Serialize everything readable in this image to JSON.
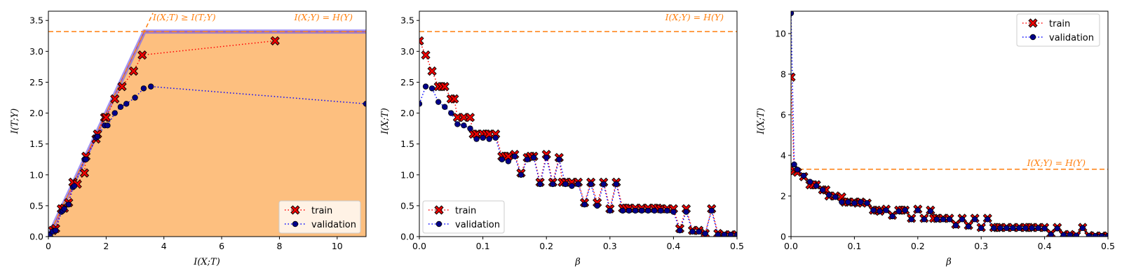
{
  "colors": {
    "orange": "#ff7f0e",
    "fill": "#fdbf7f",
    "band": "#7b68ee",
    "train_line": "#ff0000",
    "train_marker": "#ee0000",
    "val_line": "#0000ff",
    "val_marker": "#00008b"
  },
  "chart_data": [
    {
      "id": "p1",
      "type": "scatter",
      "xlabel": "I(X;T)",
      "ylabel": "I(T;Y)",
      "xlim": [
        0,
        11
      ],
      "ylim": [
        0,
        3.65
      ],
      "xticks": [
        0,
        2,
        4,
        6,
        8,
        10
      ],
      "yticks": [
        0.0,
        0.5,
        1.0,
        1.5,
        2.0,
        2.5,
        3.0,
        3.5
      ],
      "ytick_decimals": 1,
      "hline": 3.32,
      "hline_label": "I(X;Y) = H(Y)",
      "bound": {
        "points": [
          [
            0,
            0
          ],
          [
            3.32,
            3.32
          ],
          [
            11,
            3.32
          ]
        ],
        "label": "I(X;T) ≥ I(T;Y)",
        "diag_end": [
          3.62,
          3.62
        ]
      },
      "legend": "lower right",
      "grid": false,
      "series": [
        {
          "name": "train",
          "x": [
            0.05,
            0.15,
            0.25,
            0.45,
            0.55,
            0.7,
            0.85,
            1.0,
            1.25,
            1.3,
            1.65,
            1.7,
            1.95,
            2.0,
            2.3,
            2.55,
            2.95,
            3.25,
            7.85
          ],
          "y": [
            0.03,
            0.1,
            0.13,
            0.45,
            0.46,
            0.55,
            0.88,
            0.85,
            1.03,
            1.3,
            1.58,
            1.66,
            1.93,
            1.93,
            2.23,
            2.43,
            2.68,
            2.94,
            3.17
          ]
        },
        {
          "name": "validation",
          "x": [
            0.05,
            0.15,
            0.25,
            0.45,
            0.5,
            0.55,
            0.7,
            0.85,
            0.9,
            1.25,
            1.3,
            1.65,
            1.7,
            1.95,
            2.05,
            2.3,
            2.5,
            2.7,
            3.0,
            3.3,
            3.55,
            11.0
          ],
          "y": [
            0.03,
            0.08,
            0.1,
            0.4,
            0.42,
            0.45,
            0.52,
            0.8,
            0.82,
            1.25,
            1.25,
            1.6,
            1.62,
            1.8,
            1.8,
            2.0,
            2.1,
            2.15,
            2.25,
            2.4,
            2.43,
            2.15
          ]
        }
      ]
    },
    {
      "id": "p2",
      "type": "line",
      "xlabel": "β",
      "ylabel": "I(X;T)",
      "xlim": [
        0,
        0.5
      ],
      "ylim": [
        0,
        3.65
      ],
      "xticks": [
        0.0,
        0.1,
        0.2,
        0.3,
        0.4,
        0.5
      ],
      "xtick_decimals": 1,
      "yticks": [
        0.0,
        0.5,
        1.0,
        1.5,
        2.0,
        2.5,
        3.0,
        3.5
      ],
      "ytick_decimals": 1,
      "hline": 3.32,
      "hline_label": "I(X;Y) = H(Y)",
      "legend": "lower left",
      "grid": false,
      "series": [
        {
          "name": "train",
          "x": [
            0.0,
            0.01,
            0.02,
            0.03,
            0.035,
            0.04,
            0.05,
            0.055,
            0.06,
            0.07,
            0.08,
            0.085,
            0.09,
            0.1,
            0.105,
            0.11,
            0.12,
            0.13,
            0.135,
            0.14,
            0.15,
            0.16,
            0.17,
            0.175,
            0.18,
            0.19,
            0.2,
            0.21,
            0.22,
            0.225,
            0.23,
            0.24,
            0.25,
            0.26,
            0.27,
            0.28,
            0.29,
            0.3,
            0.31,
            0.32,
            0.325,
            0.33,
            0.34,
            0.35,
            0.36,
            0.37,
            0.375,
            0.38,
            0.39,
            0.4,
            0.41,
            0.42,
            0.43,
            0.44,
            0.45,
            0.46,
            0.47,
            0.48,
            0.49,
            0.5
          ],
          "y": [
            3.17,
            2.94,
            2.68,
            2.43,
            2.43,
            2.43,
            2.23,
            2.23,
            1.93,
            1.93,
            1.93,
            1.66,
            1.66,
            1.66,
            1.66,
            1.66,
            1.66,
            1.3,
            1.3,
            1.3,
            1.33,
            1.03,
            1.28,
            1.3,
            1.3,
            0.88,
            1.33,
            0.88,
            1.28,
            0.88,
            0.88,
            0.88,
            0.88,
            0.55,
            0.88,
            0.55,
            0.88,
            0.45,
            0.88,
            0.46,
            0.46,
            0.46,
            0.46,
            0.46,
            0.46,
            0.46,
            0.46,
            0.45,
            0.45,
            0.45,
            0.13,
            0.45,
            0.1,
            0.1,
            0.05,
            0.45,
            0.05,
            0.03,
            0.03,
            0.03
          ]
        },
        {
          "name": "validation",
          "x": [
            0.0,
            0.01,
            0.02,
            0.03,
            0.04,
            0.05,
            0.06,
            0.07,
            0.08,
            0.09,
            0.1,
            0.11,
            0.12,
            0.13,
            0.14,
            0.15,
            0.16,
            0.17,
            0.18,
            0.19,
            0.2,
            0.21,
            0.22,
            0.23,
            0.24,
            0.25,
            0.26,
            0.27,
            0.28,
            0.29,
            0.3,
            0.31,
            0.32,
            0.33,
            0.34,
            0.35,
            0.36,
            0.37,
            0.38,
            0.39,
            0.4,
            0.41,
            0.42,
            0.43,
            0.44,
            0.45,
            0.46,
            0.47,
            0.48,
            0.49,
            0.5
          ],
          "y": [
            2.15,
            2.43,
            2.4,
            2.18,
            2.1,
            2.0,
            1.82,
            1.8,
            1.75,
            1.58,
            1.6,
            1.58,
            1.6,
            1.25,
            1.22,
            1.3,
            1.0,
            1.25,
            1.28,
            0.85,
            1.28,
            0.85,
            1.25,
            0.85,
            0.82,
            0.85,
            0.52,
            0.85,
            0.5,
            0.85,
            0.42,
            0.85,
            0.42,
            0.42,
            0.42,
            0.42,
            0.42,
            0.42,
            0.42,
            0.42,
            0.4,
            0.1,
            0.4,
            0.08,
            0.08,
            0.05,
            0.42,
            0.03,
            0.03,
            0.03,
            0.03
          ]
        }
      ]
    },
    {
      "id": "p3",
      "type": "line",
      "xlabel": "β",
      "ylabel": "I(X;T)",
      "xlim": [
        0,
        0.5
      ],
      "ylim": [
        0,
        11.1
      ],
      "xticks": [
        0.0,
        0.1,
        0.2,
        0.3,
        0.4,
        0.5
      ],
      "xtick_decimals": 1,
      "yticks": [
        0,
        2,
        4,
        6,
        8,
        10
      ],
      "ytick_decimals": 0,
      "hline": 3.32,
      "hline_label": "I(X;Y) = H(Y)",
      "legend": "upper right",
      "grid": false,
      "series": [
        {
          "name": "train",
          "x": [
            0.0,
            0.005,
            0.01,
            0.02,
            0.03,
            0.035,
            0.04,
            0.05,
            0.055,
            0.06,
            0.07,
            0.08,
            0.085,
            0.09,
            0.1,
            0.105,
            0.11,
            0.12,
            0.13,
            0.135,
            0.14,
            0.15,
            0.16,
            0.17,
            0.175,
            0.18,
            0.19,
            0.2,
            0.21,
            0.22,
            0.225,
            0.23,
            0.24,
            0.25,
            0.26,
            0.27,
            0.28,
            0.29,
            0.3,
            0.31,
            0.32,
            0.325,
            0.33,
            0.34,
            0.35,
            0.36,
            0.37,
            0.375,
            0.38,
            0.39,
            0.4,
            0.41,
            0.42,
            0.43,
            0.44,
            0.45,
            0.46,
            0.47,
            0.48,
            0.49,
            0.5
          ],
          "y": [
            7.85,
            3.25,
            3.17,
            2.95,
            2.55,
            2.55,
            2.55,
            2.3,
            2.3,
            2.0,
            2.0,
            1.95,
            1.7,
            1.7,
            1.7,
            1.65,
            1.7,
            1.65,
            1.3,
            1.3,
            1.25,
            1.35,
            1.05,
            1.3,
            1.3,
            1.3,
            0.9,
            1.35,
            0.9,
            1.3,
            0.9,
            0.9,
            0.9,
            0.9,
            0.6,
            0.9,
            0.55,
            0.9,
            0.45,
            0.9,
            0.45,
            0.45,
            0.45,
            0.45,
            0.45,
            0.45,
            0.45,
            0.45,
            0.45,
            0.45,
            0.45,
            0.15,
            0.45,
            0.1,
            0.1,
            0.05,
            0.45,
            0.05,
            0.03,
            0.03,
            0.03
          ]
        },
        {
          "name": "validation",
          "x": [
            0.0,
            0.005,
            0.01,
            0.02,
            0.03,
            0.04,
            0.05,
            0.06,
            0.07,
            0.08,
            0.09,
            0.1,
            0.11,
            0.12,
            0.13,
            0.14,
            0.15,
            0.16,
            0.17,
            0.18,
            0.19,
            0.2,
            0.21,
            0.22,
            0.23,
            0.24,
            0.25,
            0.26,
            0.27,
            0.28,
            0.29,
            0.3,
            0.31,
            0.32,
            0.33,
            0.34,
            0.35,
            0.36,
            0.37,
            0.38,
            0.39,
            0.4,
            0.41,
            0.42,
            0.43,
            0.44,
            0.45,
            0.46,
            0.47,
            0.48,
            0.49,
            0.5
          ],
          "y": [
            11.0,
            3.55,
            3.3,
            3.0,
            2.7,
            2.5,
            2.3,
            2.05,
            1.95,
            1.7,
            1.7,
            1.65,
            1.7,
            1.65,
            1.3,
            1.25,
            1.3,
            1.0,
            1.25,
            1.3,
            0.85,
            1.3,
            0.85,
            1.25,
            0.85,
            0.85,
            0.85,
            0.55,
            0.85,
            0.5,
            0.85,
            0.42,
            0.85,
            0.42,
            0.42,
            0.42,
            0.42,
            0.42,
            0.42,
            0.42,
            0.42,
            0.4,
            0.1,
            0.4,
            0.08,
            0.08,
            0.05,
            0.42,
            0.03,
            0.03,
            0.03,
            0.03
          ]
        }
      ]
    }
  ]
}
